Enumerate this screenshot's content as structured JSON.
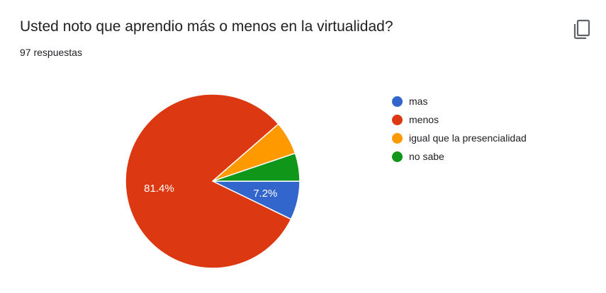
{
  "header": {
    "title": "Usted noto que aprendio más o menos en la virtualidad?",
    "response_count": "97 respuestas",
    "copy_icon": "copy-icon"
  },
  "chart_data": {
    "type": "pie",
    "title": "Usted noto que aprendio más o menos en la virtualidad?",
    "legend_position": "right",
    "slices": [
      {
        "label": "mas",
        "value": 7.2,
        "color": "#3366cc",
        "data_label": "7.2%"
      },
      {
        "label": "menos",
        "value": 81.4,
        "color": "#dc3912",
        "data_label": "81.4%"
      },
      {
        "label": "igual que la presencialidad",
        "value": 6.2,
        "color": "#ff9900",
        "data_label": ""
      },
      {
        "label": "no sabe",
        "value": 5.2,
        "color": "#109618",
        "data_label": ""
      }
    ]
  }
}
